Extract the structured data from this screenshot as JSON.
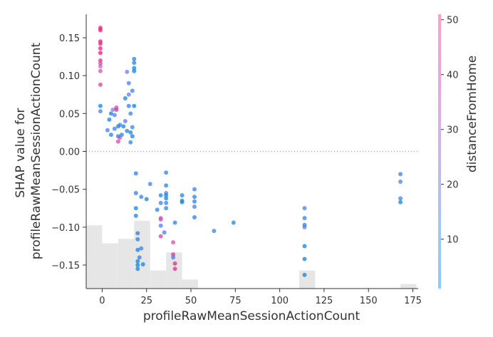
{
  "chart_data": {
    "type": "scatter",
    "title": "",
    "xlabel": "profileRawMeanSessionActionCount",
    "ylabel_lines": [
      "SHAP value for",
      "profileRawMeanSessionActionCount"
    ],
    "xlim": [
      -9,
      178
    ],
    "ylim": [
      -0.181,
      0.181
    ],
    "xticks": [
      0,
      25,
      50,
      75,
      100,
      125,
      150,
      175
    ],
    "yticks": [
      0.15,
      0.1,
      0.05,
      0.0,
      -0.05,
      -0.1,
      -0.15
    ],
    "ytick_labels": [
      "0.15",
      "0.10",
      "0.05",
      "0.00",
      "−0.05",
      "−0.10",
      "−0.15"
    ],
    "zero_line": true,
    "colorbar": {
      "label": "distanceFromHome",
      "min": 1,
      "max": 51,
      "ticks": [
        10,
        20,
        30,
        40,
        50
      ],
      "colors": [
        "#87cefa",
        "#a9c4f0",
        "#c8b8e6",
        "#e8a8dc",
        "#ff9ecf"
      ],
      "point_colors": [
        "#0d8de8",
        "#3a6fe3",
        "#a54ad1",
        "#d2309a",
        "#ea1c7a"
      ]
    },
    "histogram": {
      "bins": [
        {
          "x0": -9,
          "x1": 0,
          "count": 14
        },
        {
          "x0": 0,
          "x1": 9,
          "count": 10
        },
        {
          "x0": 9,
          "x1": 18,
          "count": 11
        },
        {
          "x0": 18,
          "x1": 27,
          "count": 15
        },
        {
          "x0": 27,
          "x1": 36,
          "count": 4
        },
        {
          "x0": 36,
          "x1": 45,
          "count": 8
        },
        {
          "x0": 45,
          "x1": 54,
          "count": 2
        },
        {
          "x0": 54,
          "x1": 63,
          "count": 0
        },
        {
          "x0": 111,
          "x1": 120,
          "count": 4
        },
        {
          "x0": 168,
          "x1": 177,
          "count": 1
        }
      ],
      "max_fraction": 0.22
    },
    "points": [
      {
        "x": -1,
        "y": 0.163,
        "c": 50
      },
      {
        "x": -1,
        "y": 0.16,
        "c": 49
      },
      {
        "x": -1,
        "y": 0.145,
        "c": 48
      },
      {
        "x": -1,
        "y": 0.142,
        "c": 46
      },
      {
        "x": -1,
        "y": 0.136,
        "c": 47
      },
      {
        "x": -1,
        "y": 0.13,
        "c": 48
      },
      {
        "x": -1,
        "y": 0.12,
        "c": 42
      },
      {
        "x": -1,
        "y": 0.116,
        "c": 38
      },
      {
        "x": -1,
        "y": 0.112,
        "c": 30
      },
      {
        "x": -1,
        "y": 0.106,
        "c": 35
      },
      {
        "x": -1,
        "y": 0.088,
        "c": 40
      },
      {
        "x": -1,
        "y": 0.06,
        "c": 3
      },
      {
        "x": -1,
        "y": 0.053,
        "c": 14
      },
      {
        "x": 3,
        "y": 0.028,
        "c": 12
      },
      {
        "x": 4,
        "y": 0.042,
        "c": 4
      },
      {
        "x": 5,
        "y": 0.022,
        "c": 6
      },
      {
        "x": 5,
        "y": 0.05,
        "c": 3
      },
      {
        "x": 6,
        "y": 0.055,
        "c": 20
      },
      {
        "x": 7,
        "y": 0.03,
        "c": 10
      },
      {
        "x": 7,
        "y": 0.048,
        "c": 14
      },
      {
        "x": 8,
        "y": 0.055,
        "c": 45
      },
      {
        "x": 8,
        "y": 0.058,
        "c": 36
      },
      {
        "x": 9,
        "y": 0.033,
        "c": 5
      },
      {
        "x": 9,
        "y": 0.02,
        "c": 8
      },
      {
        "x": 9,
        "y": 0.013,
        "c": 38
      },
      {
        "x": 10,
        "y": 0.018,
        "c": 34
      },
      {
        "x": 10,
        "y": 0.035,
        "c": 12
      },
      {
        "x": 11,
        "y": 0.022,
        "c": 7
      },
      {
        "x": 12,
        "y": 0.033,
        "c": 4
      },
      {
        "x": 13,
        "y": 0.04,
        "c": 15
      },
      {
        "x": 13,
        "y": 0.07,
        "c": 3
      },
      {
        "x": 14,
        "y": 0.027,
        "c": 6
      },
      {
        "x": 14,
        "y": 0.105,
        "c": 18
      },
      {
        "x": 15,
        "y": 0.09,
        "c": 12
      },
      {
        "x": 15,
        "y": 0.075,
        "c": 16
      },
      {
        "x": 15,
        "y": 0.06,
        "c": 7
      },
      {
        "x": 16,
        "y": 0.05,
        "c": 10
      },
      {
        "x": 16,
        "y": 0.025,
        "c": 5
      },
      {
        "x": 16,
        "y": 0.012,
        "c": 9
      },
      {
        "x": 17,
        "y": 0.08,
        "c": 10
      },
      {
        "x": 17,
        "y": 0.032,
        "c": 9
      },
      {
        "x": 17,
        "y": 0.02,
        "c": 4
      },
      {
        "x": 18,
        "y": 0.122,
        "c": 8
      },
      {
        "x": 18,
        "y": 0.117,
        "c": 6
      },
      {
        "x": 18,
        "y": 0.11,
        "c": 4
      },
      {
        "x": 18,
        "y": 0.106,
        "c": 3
      },
      {
        "x": 18,
        "y": 0.06,
        "c": 2
      },
      {
        "x": 19,
        "y": -0.029,
        "c": 6
      },
      {
        "x": 19,
        "y": -0.055,
        "c": 8
      },
      {
        "x": 19,
        "y": -0.075,
        "c": 4
      },
      {
        "x": 19,
        "y": -0.085,
        "c": 5
      },
      {
        "x": 20,
        "y": -0.108,
        "c": 8
      },
      {
        "x": 20,
        "y": -0.116,
        "c": 6
      },
      {
        "x": 20,
        "y": -0.13,
        "c": 3
      },
      {
        "x": 20,
        "y": -0.145,
        "c": 2
      },
      {
        "x": 20,
        "y": -0.15,
        "c": 3
      },
      {
        "x": 20,
        "y": -0.155,
        "c": 4
      },
      {
        "x": 21,
        "y": -0.14,
        "c": 7
      },
      {
        "x": 22,
        "y": -0.06,
        "c": 10
      },
      {
        "x": 22,
        "y": -0.128,
        "c": 12
      },
      {
        "x": 23,
        "y": -0.149,
        "c": 4
      },
      {
        "x": 25,
        "y": -0.063,
        "c": 3
      },
      {
        "x": 27,
        "y": -0.043,
        "c": 12
      },
      {
        "x": 31,
        "y": -0.077,
        "c": 8
      },
      {
        "x": 33,
        "y": -0.058,
        "c": 6
      },
      {
        "x": 33,
        "y": -0.068,
        "c": 10
      },
      {
        "x": 33,
        "y": -0.088,
        "c": 35
      },
      {
        "x": 33,
        "y": -0.09,
        "c": 30
      },
      {
        "x": 33,
        "y": -0.098,
        "c": 14
      },
      {
        "x": 33,
        "y": -0.112,
        "c": 40
      },
      {
        "x": 35,
        "y": -0.107,
        "c": 12
      },
      {
        "x": 36,
        "y": -0.028,
        "c": 10
      },
      {
        "x": 36,
        "y": -0.045,
        "c": 8
      },
      {
        "x": 36,
        "y": -0.055,
        "c": 14
      },
      {
        "x": 36,
        "y": -0.058,
        "c": 4
      },
      {
        "x": 36,
        "y": -0.062,
        "c": 3
      },
      {
        "x": 36,
        "y": -0.068,
        "c": 9
      },
      {
        "x": 36,
        "y": -0.075,
        "c": 7
      },
      {
        "x": 40,
        "y": -0.12,
        "c": 36
      },
      {
        "x": 40,
        "y": -0.136,
        "c": 42
      },
      {
        "x": 40,
        "y": -0.14,
        "c": 12
      },
      {
        "x": 41,
        "y": -0.148,
        "c": 45
      },
      {
        "x": 41,
        "y": -0.155,
        "c": 44
      },
      {
        "x": 41,
        "y": -0.094,
        "c": 8
      },
      {
        "x": 45,
        "y": -0.058,
        "c": 5
      },
      {
        "x": 45,
        "y": -0.065,
        "c": 7
      },
      {
        "x": 45,
        "y": -0.067,
        "c": 4
      },
      {
        "x": 52,
        "y": -0.05,
        "c": 10
      },
      {
        "x": 52,
        "y": -0.06,
        "c": 6
      },
      {
        "x": 52,
        "y": -0.066,
        "c": 8
      },
      {
        "x": 52,
        "y": -0.073,
        "c": 12
      },
      {
        "x": 52,
        "y": -0.087,
        "c": 6
      },
      {
        "x": 63,
        "y": -0.105,
        "c": 10
      },
      {
        "x": 74,
        "y": -0.094,
        "c": 8
      },
      {
        "x": 114,
        "y": -0.075,
        "c": 14
      },
      {
        "x": 114,
        "y": -0.088,
        "c": 10
      },
      {
        "x": 114,
        "y": -0.097,
        "c": 9
      },
      {
        "x": 114,
        "y": -0.1,
        "c": 16
      },
      {
        "x": 114,
        "y": -0.125,
        "c": 3
      },
      {
        "x": 114,
        "y": -0.142,
        "c": 2
      },
      {
        "x": 114,
        "y": -0.163,
        "c": 4
      },
      {
        "x": 168,
        "y": -0.03,
        "c": 10
      },
      {
        "x": 168,
        "y": -0.04,
        "c": 12
      },
      {
        "x": 168,
        "y": -0.062,
        "c": 9
      },
      {
        "x": 168,
        "y": -0.067,
        "c": 5
      }
    ]
  }
}
